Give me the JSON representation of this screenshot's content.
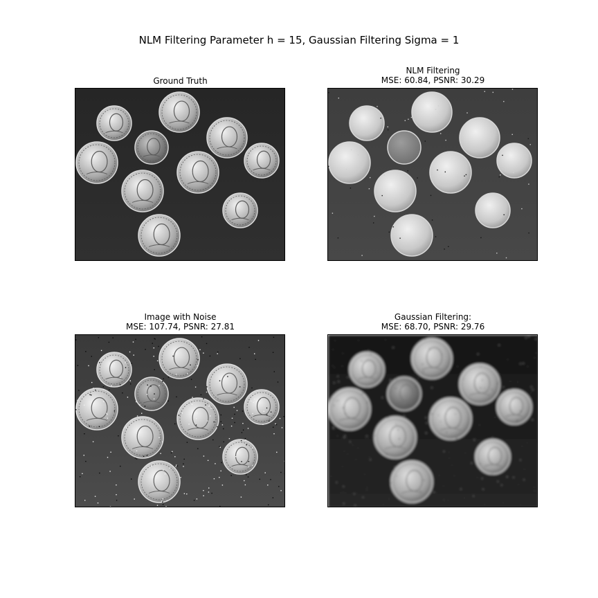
{
  "figure": {
    "title": "NLM Filtering Parameter h = 15, Gaussian Filtering Sigma = 1"
  },
  "panels": {
    "ground_truth": {
      "title_line1": "Ground Truth",
      "title_line2": ""
    },
    "nlm": {
      "title_line1": "NLM Filtering",
      "title_line2": "MSE: 60.84, PSNR: 30.29"
    },
    "noisy": {
      "title_line1": "Image with Noise",
      "title_line2": "MSE: 107.74, PSNR: 27.81"
    },
    "gaussian": {
      "title_line1": "Gaussian Filtering:",
      "title_line2": "MSE: 68.70, PSNR: 29.76"
    }
  },
  "image_content": {
    "subject": "coins",
    "coin_count": 10,
    "colormap": "gray"
  }
}
